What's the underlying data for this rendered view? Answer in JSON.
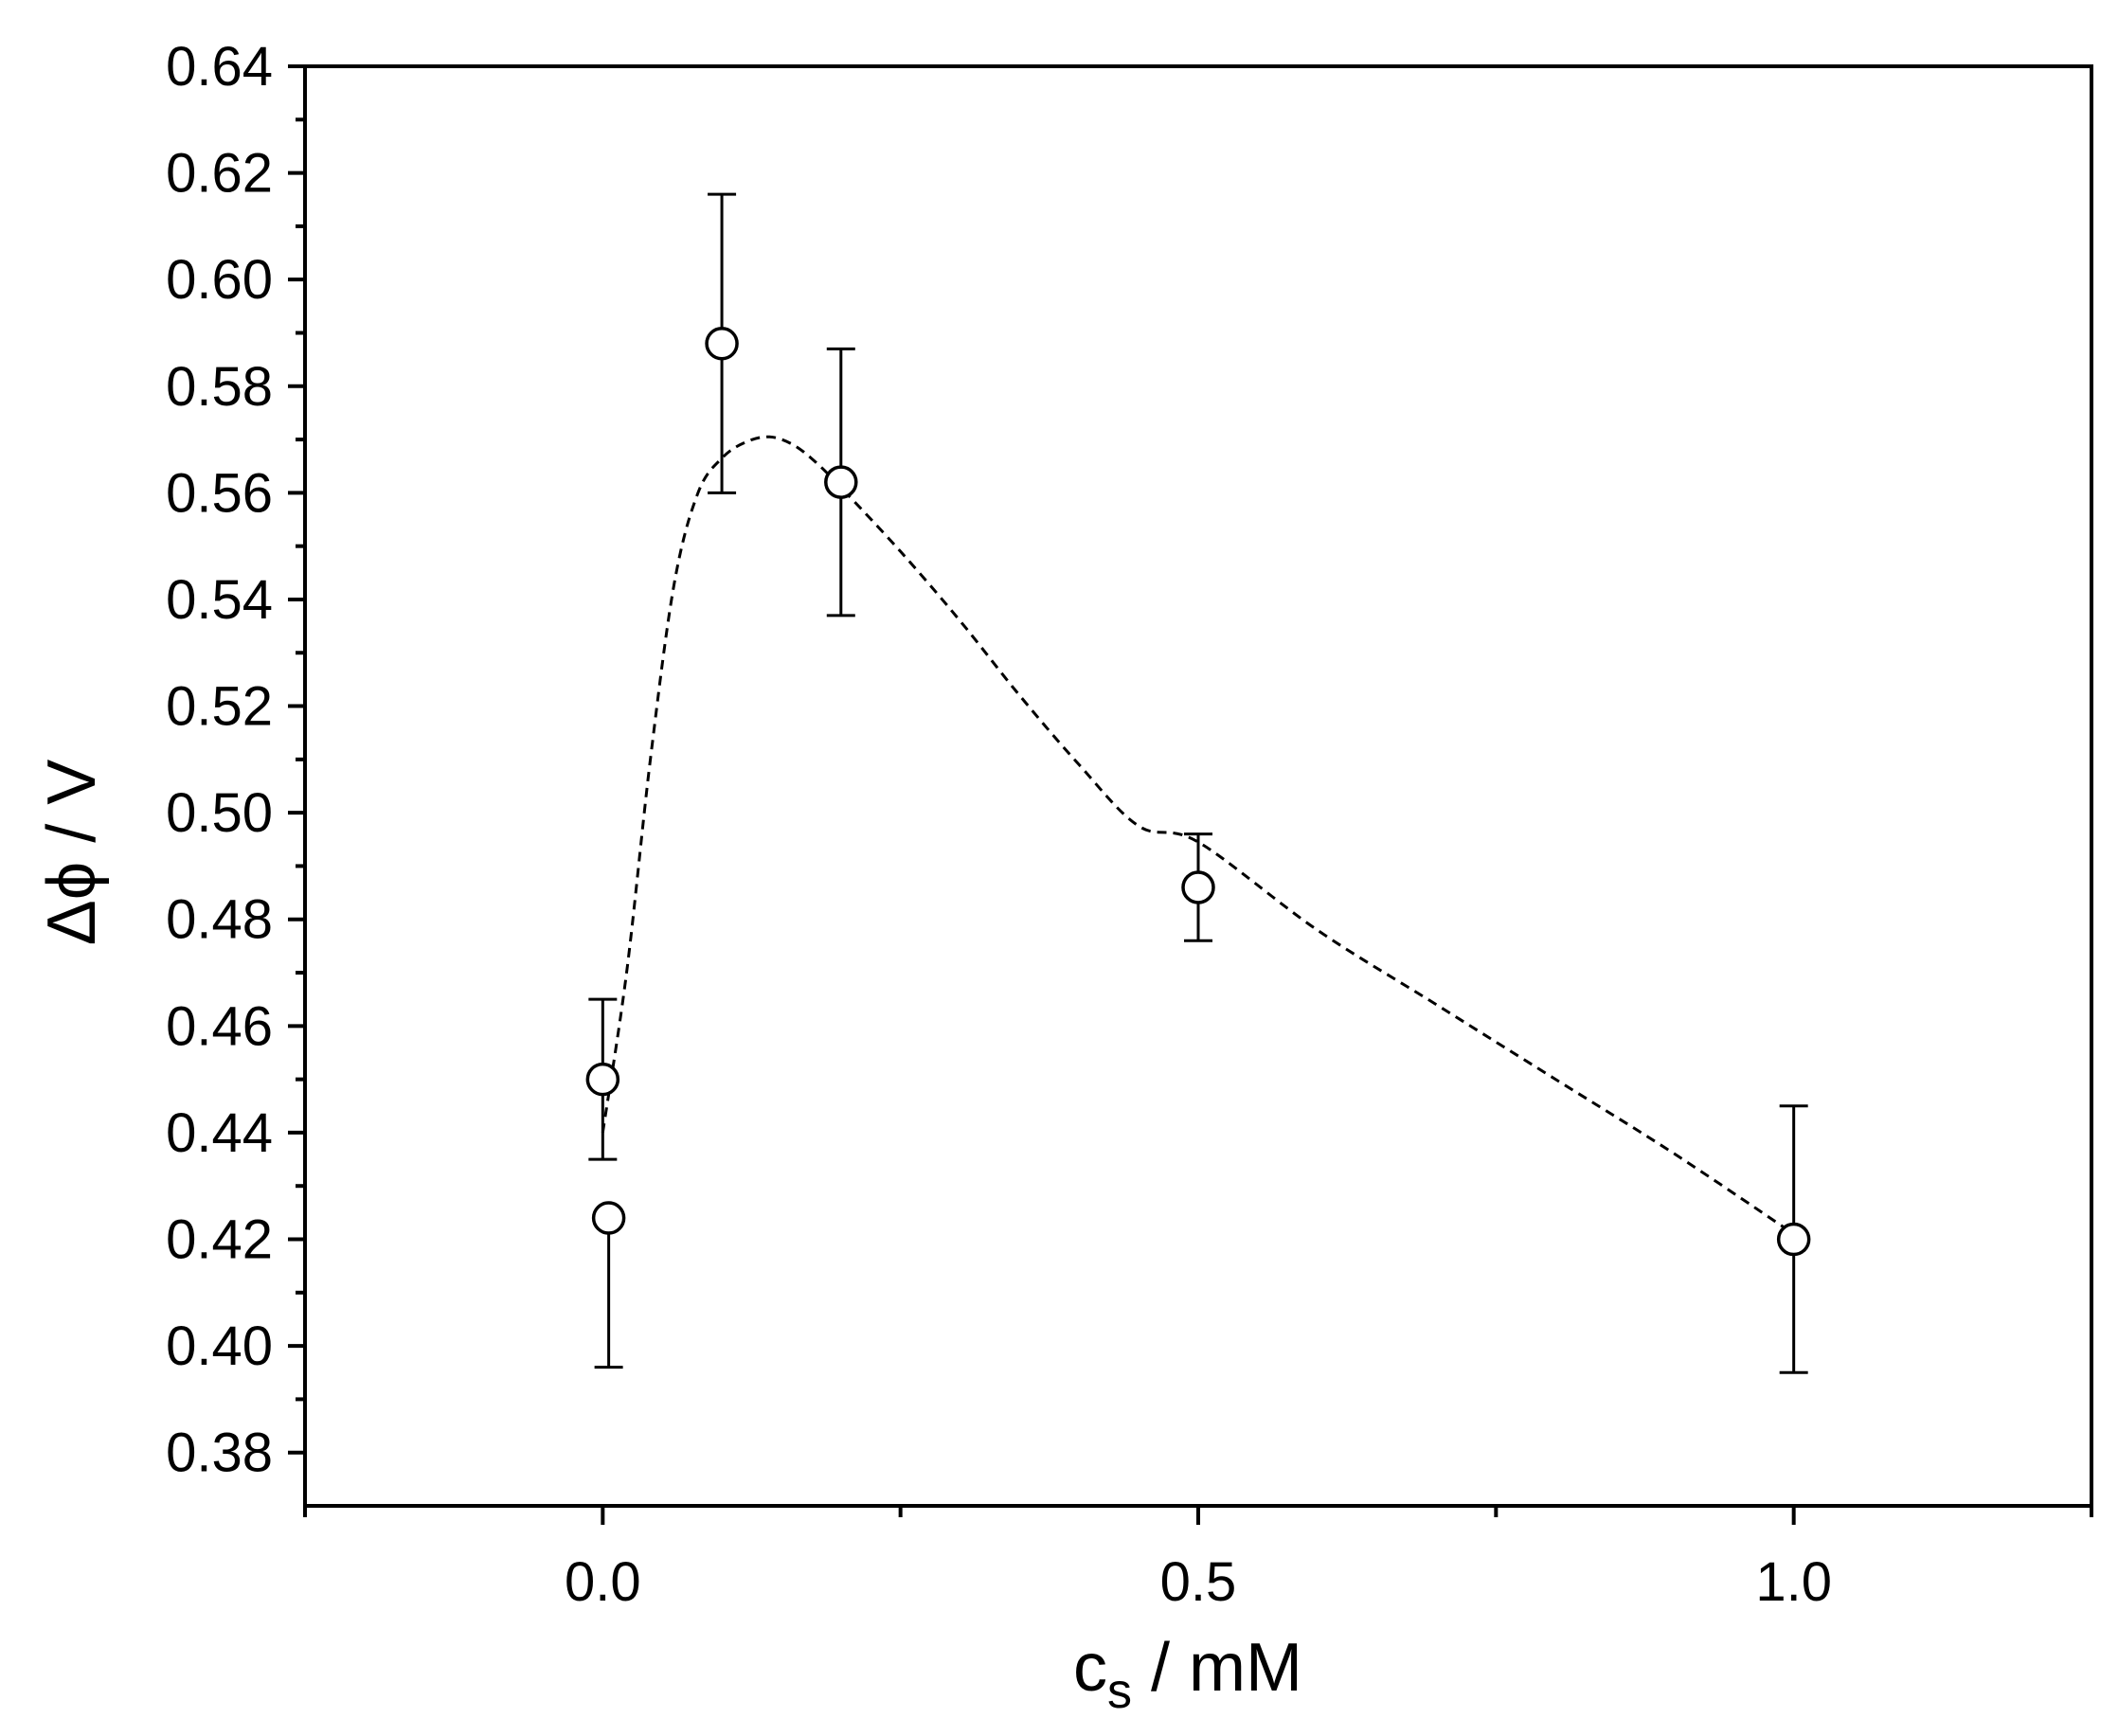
{
  "chart_data": {
    "type": "scatter",
    "title": "",
    "xlabel_main": "c",
    "xlabel_sub": "s",
    "xlabel_rest": " / mM",
    "ylabel": "Δϕ / V",
    "xlim": [
      -0.25,
      1.25
    ],
    "ylim": [
      0.37,
      0.64
    ],
    "xticks": [
      0.0,
      0.5,
      1.0
    ],
    "xtick_labels": [
      "0.0",
      "0.5",
      "1.0"
    ],
    "yticks": [
      0.38,
      0.4,
      0.42,
      0.44,
      0.46,
      0.48,
      0.5,
      0.52,
      0.54,
      0.56,
      0.58,
      0.6,
      0.62,
      0.64
    ],
    "ytick_labels": [
      "0.38",
      "0.40",
      "0.42",
      "0.44",
      "0.46",
      "0.48",
      "0.50",
      "0.52",
      "0.54",
      "0.56",
      "0.58",
      "0.60",
      "0.62",
      "0.64"
    ],
    "grid": false,
    "legend": "none",
    "series": [
      {
        "marker": "open-circle",
        "points": [
          {
            "x": 0.0,
            "y": 0.45,
            "err_low": 0.435,
            "err_high": 0.465
          },
          {
            "x": 0.005,
            "y": 0.424,
            "err_low": 0.396,
            "err_high": 0.424
          },
          {
            "x": 0.1,
            "y": 0.588,
            "err_low": 0.56,
            "err_high": 0.616
          },
          {
            "x": 0.2,
            "y": 0.562,
            "err_low": 0.537,
            "err_high": 0.587
          },
          {
            "x": 0.5,
            "y": 0.486,
            "err_low": 0.476,
            "err_high": 0.496
          },
          {
            "x": 1.0,
            "y": 0.42,
            "err_low": 0.395,
            "err_high": 0.445
          }
        ]
      },
      {
        "line_style": "dashed",
        "x": [
          0.0,
          0.02,
          0.04,
          0.06,
          0.08,
          0.1,
          0.12,
          0.14,
          0.16,
          0.18,
          0.2,
          0.25,
          0.3,
          0.35,
          0.4,
          0.45,
          0.5,
          0.6,
          0.7,
          0.8,
          0.9,
          1.0
        ],
        "y": [
          0.44,
          0.47,
          0.51,
          0.543,
          0.56,
          0.5665,
          0.5695,
          0.5705,
          0.569,
          0.5655,
          0.561,
          0.549,
          0.536,
          0.522,
          0.509,
          0.4975,
          0.4945,
          0.478,
          0.464,
          0.45,
          0.436,
          0.421
        ]
      }
    ]
  },
  "style": {
    "axis_color": "#000000",
    "marker_fill": "#ffffff",
    "line_color": "#000000"
  }
}
